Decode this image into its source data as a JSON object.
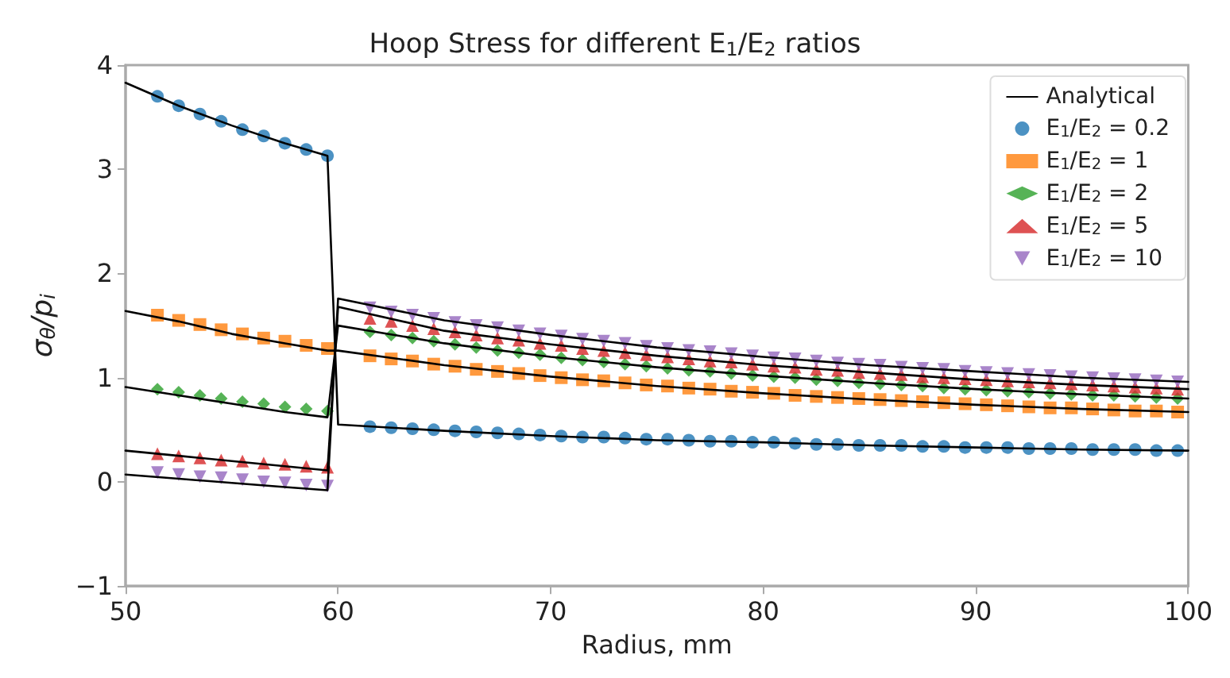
{
  "chart_data": {
    "type": "scatter",
    "title": "Hoop Stress for different E$_{1}$/E$_{2}$ ratios",
    "xlabel": "Radius, mm",
    "ylabel": "σ$_{θ}$/p$_{i}$",
    "xlim": [
      50,
      100
    ],
    "ylim": [
      -1,
      4
    ],
    "xticks": [
      50,
      60,
      70,
      80,
      90,
      100
    ],
    "yticks": [
      {
        "value": -1,
        "label": "−1"
      },
      0,
      1,
      2,
      3,
      4
    ],
    "grid": false,
    "legend": "top right",
    "series": [
      {
        "type": "line",
        "name": "Analytical",
        "color": "#000000",
        "marker": "none",
        "x": [
          50,
          52.5,
          55,
          57.5,
          59.5,
          60,
          65,
          70,
          75,
          80,
          85,
          90,
          95,
          100
        ],
        "values": [
          3.83,
          3.61,
          3.42,
          3.25,
          3.13,
          0.55,
          0.49,
          0.44,
          0.4,
          0.38,
          0.35,
          0.33,
          0.31,
          0.3
        ]
      },
      {
        "type": "line",
        "color": "#000000",
        "marker": "none",
        "x": [
          50,
          52.5,
          55,
          57.5,
          59.5,
          60,
          65,
          70,
          75,
          80,
          85,
          90,
          95,
          100
        ],
        "values": [
          1.64,
          1.54,
          1.42,
          1.33,
          1.26,
          1.26,
          1.12,
          1.01,
          0.92,
          0.85,
          0.79,
          0.74,
          0.7,
          0.67
        ]
      },
      {
        "type": "line",
        "color": "#000000",
        "marker": "none",
        "x": [
          50,
          52.5,
          55,
          57.5,
          59.5,
          60,
          65,
          70,
          75,
          80,
          85,
          90,
          95,
          100
        ],
        "values": [
          0.91,
          0.83,
          0.75,
          0.67,
          0.62,
          1.5,
          1.33,
          1.2,
          1.1,
          1.02,
          0.95,
          0.89,
          0.84,
          0.8
        ]
      },
      {
        "type": "line",
        "color": "#000000",
        "marker": "none",
        "x": [
          50,
          52.5,
          55,
          57.5,
          59.5,
          60,
          65,
          70,
          75,
          80,
          85,
          90,
          95,
          100
        ],
        "values": [
          0.3,
          0.25,
          0.2,
          0.15,
          0.11,
          1.68,
          1.45,
          1.32,
          1.21,
          1.12,
          1.05,
          0.98,
          0.93,
          0.89
        ]
      },
      {
        "type": "line",
        "color": "#000000",
        "marker": "none",
        "x": [
          50,
          52.5,
          55,
          57.5,
          59.5,
          60,
          65,
          70,
          75,
          80,
          85,
          90,
          95,
          100
        ],
        "values": [
          0.07,
          0.03,
          -0.01,
          -0.05,
          -0.08,
          1.76,
          1.55,
          1.41,
          1.29,
          1.2,
          1.12,
          1.06,
          1.0,
          0.96
        ]
      },
      {
        "name": "E$_{1}$/E$_{2}$ = 0.2",
        "color": "#1f77b4",
        "marker": "circle",
        "x": [
          51.5,
          52.5,
          53.5,
          54.5,
          55.5,
          56.5,
          57.5,
          58.5,
          59.5,
          61.5,
          62.5,
          63.5,
          64.5,
          65.5,
          66.5,
          67.5,
          68.5,
          69.5,
          70.5,
          71.5,
          72.5,
          73.5,
          74.5,
          75.5,
          76.5,
          77.5,
          78.5,
          79.5,
          80.5,
          81.5,
          82.5,
          83.5,
          84.5,
          85.5,
          86.5,
          87.5,
          88.5,
          89.5,
          90.5,
          91.5,
          92.5,
          93.5,
          94.5,
          95.5,
          96.5,
          97.5,
          98.5,
          99.5
        ],
        "values": [
          3.7,
          3.61,
          3.53,
          3.46,
          3.38,
          3.32,
          3.25,
          3.19,
          3.13,
          0.53,
          0.52,
          0.51,
          0.5,
          0.49,
          0.48,
          0.47,
          0.46,
          0.45,
          0.44,
          0.43,
          0.43,
          0.42,
          0.41,
          0.41,
          0.4,
          0.39,
          0.39,
          0.38,
          0.38,
          0.37,
          0.36,
          0.36,
          0.35,
          0.35,
          0.35,
          0.34,
          0.34,
          0.33,
          0.33,
          0.33,
          0.32,
          0.32,
          0.32,
          0.31,
          0.31,
          0.31,
          0.3,
          0.3
        ]
      },
      {
        "name": "E$_{1}$/E$_{2}$ = 1",
        "color": "#ff7f0e",
        "marker": "square",
        "x": [
          51.5,
          52.5,
          53.5,
          54.5,
          55.5,
          56.5,
          57.5,
          58.5,
          59.5,
          61.5,
          62.5,
          63.5,
          64.5,
          65.5,
          66.5,
          67.5,
          68.5,
          69.5,
          70.5,
          71.5,
          72.5,
          73.5,
          74.5,
          75.5,
          76.5,
          77.5,
          78.5,
          79.5,
          80.5,
          81.5,
          82.5,
          83.5,
          84.5,
          85.5,
          86.5,
          87.5,
          88.5,
          89.5,
          90.5,
          91.5,
          92.5,
          93.5,
          94.5,
          95.5,
          96.5,
          97.5,
          98.5,
          99.5
        ],
        "values": [
          1.6,
          1.55,
          1.51,
          1.46,
          1.42,
          1.38,
          1.35,
          1.31,
          1.28,
          1.21,
          1.18,
          1.16,
          1.13,
          1.11,
          1.08,
          1.06,
          1.04,
          1.02,
          1.0,
          0.98,
          0.97,
          0.95,
          0.93,
          0.92,
          0.9,
          0.89,
          0.87,
          0.86,
          0.85,
          0.83,
          0.82,
          0.81,
          0.8,
          0.79,
          0.78,
          0.77,
          0.76,
          0.75,
          0.74,
          0.73,
          0.72,
          0.71,
          0.71,
          0.7,
          0.69,
          0.68,
          0.68,
          0.67
        ]
      },
      {
        "name": "E$_{1}$/E$_{2}$ = 2",
        "color": "#2ca02c",
        "marker": "diamond",
        "x": [
          51.5,
          52.5,
          53.5,
          54.5,
          55.5,
          56.5,
          57.5,
          58.5,
          59.5,
          61.5,
          62.5,
          63.5,
          64.5,
          65.5,
          66.5,
          67.5,
          68.5,
          69.5,
          70.5,
          71.5,
          72.5,
          73.5,
          74.5,
          75.5,
          76.5,
          77.5,
          78.5,
          79.5,
          80.5,
          81.5,
          82.5,
          83.5,
          84.5,
          85.5,
          86.5,
          87.5,
          88.5,
          89.5,
          90.5,
          91.5,
          92.5,
          93.5,
          94.5,
          95.5,
          96.5,
          97.5,
          98.5,
          99.5
        ],
        "values": [
          0.89,
          0.86,
          0.83,
          0.8,
          0.77,
          0.75,
          0.72,
          0.7,
          0.68,
          1.44,
          1.41,
          1.38,
          1.35,
          1.32,
          1.29,
          1.26,
          1.24,
          1.22,
          1.19,
          1.17,
          1.15,
          1.13,
          1.11,
          1.09,
          1.07,
          1.06,
          1.04,
          1.02,
          1.01,
          1.0,
          0.98,
          0.97,
          0.95,
          0.94,
          0.93,
          0.92,
          0.9,
          0.89,
          0.88,
          0.87,
          0.86,
          0.85,
          0.84,
          0.83,
          0.83,
          0.82,
          0.81,
          0.8
        ]
      },
      {
        "name": "E$_{1}$/E$_{2}$ = 5",
        "color": "#d62728",
        "marker": "triangle",
        "x": [
          51.5,
          52.5,
          53.5,
          54.5,
          55.5,
          56.5,
          57.5,
          58.5,
          59.5,
          61.5,
          62.5,
          63.5,
          64.5,
          65.5,
          66.5,
          67.5,
          68.5,
          69.5,
          70.5,
          71.5,
          72.5,
          73.5,
          74.5,
          75.5,
          76.5,
          77.5,
          78.5,
          79.5,
          80.5,
          81.5,
          82.5,
          83.5,
          84.5,
          85.5,
          86.5,
          87.5,
          88.5,
          89.5,
          90.5,
          91.5,
          92.5,
          93.5,
          94.5,
          95.5,
          96.5,
          97.5,
          98.5,
          99.5
        ],
        "values": [
          0.27,
          0.25,
          0.23,
          0.21,
          0.2,
          0.18,
          0.17,
          0.15,
          0.14,
          1.57,
          1.54,
          1.5,
          1.47,
          1.44,
          1.41,
          1.38,
          1.36,
          1.33,
          1.31,
          1.28,
          1.26,
          1.24,
          1.22,
          1.2,
          1.18,
          1.16,
          1.15,
          1.13,
          1.11,
          1.1,
          1.08,
          1.07,
          1.05,
          1.04,
          1.03,
          1.01,
          1.0,
          0.99,
          0.98,
          0.97,
          0.96,
          0.95,
          0.94,
          0.93,
          0.92,
          0.91,
          0.9,
          0.89
        ]
      },
      {
        "name": "E$_{1}$/E$_{2}$ = 10",
        "color": "#9467bd",
        "marker": "triangle-down",
        "x": [
          51.5,
          52.5,
          53.5,
          54.5,
          55.5,
          56.5,
          57.5,
          58.5,
          59.5,
          61.5,
          62.5,
          63.5,
          64.5,
          65.5,
          66.5,
          67.5,
          68.5,
          69.5,
          70.5,
          71.5,
          72.5,
          73.5,
          74.5,
          75.5,
          76.5,
          77.5,
          78.5,
          79.5,
          80.5,
          81.5,
          82.5,
          83.5,
          84.5,
          85.5,
          86.5,
          87.5,
          88.5,
          89.5,
          90.5,
          91.5,
          92.5,
          93.5,
          94.5,
          95.5,
          96.5,
          97.5,
          98.5,
          99.5
        ],
        "values": [
          0.09,
          0.07,
          0.05,
          0.04,
          0.02,
          0.0,
          -0.01,
          -0.03,
          -0.04,
          1.67,
          1.63,
          1.6,
          1.57,
          1.53,
          1.5,
          1.48,
          1.45,
          1.42,
          1.4,
          1.37,
          1.35,
          1.33,
          1.3,
          1.28,
          1.26,
          1.25,
          1.23,
          1.21,
          1.19,
          1.18,
          1.16,
          1.14,
          1.13,
          1.12,
          1.1,
          1.09,
          1.08,
          1.06,
          1.05,
          1.04,
          1.03,
          1.02,
          1.01,
          1.0,
          0.99,
          0.98,
          0.97,
          0.96
        ]
      }
    ]
  }
}
